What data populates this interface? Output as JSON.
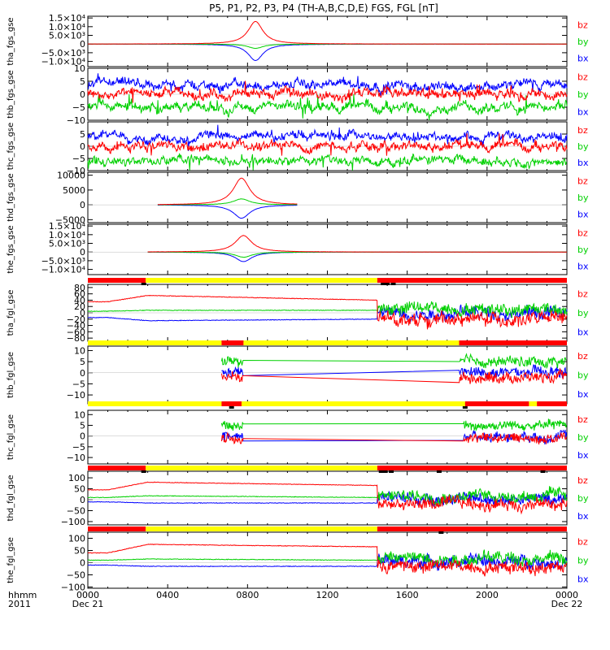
{
  "title": "P5, P1, P2, P3, P4 (TH-A,B,C,D,E) FGS, FGL [nT]",
  "colors": {
    "bx": "#0000ff",
    "by": "#00d000",
    "bz": "#ff0000",
    "bar_red": "#ff0000",
    "bar_yellow": "#ffff00",
    "bar_black": "#000000"
  },
  "legend": [
    "bz",
    "by",
    "bx"
  ],
  "x_axis": {
    "hour_range": [
      0,
      24
    ],
    "ticks": [
      {
        "hour": 0,
        "label": "0000",
        "sublabel": "Dec 21"
      },
      {
        "hour": 4,
        "label": "0400",
        "sublabel": ""
      },
      {
        "hour": 8,
        "label": "0800",
        "sublabel": ""
      },
      {
        "hour": 12,
        "label": "1200",
        "sublabel": ""
      },
      {
        "hour": 16,
        "label": "1600",
        "sublabel": ""
      },
      {
        "hour": 20,
        "label": "2000",
        "sublabel": ""
      },
      {
        "hour": 24,
        "label": "0000",
        "sublabel": "Dec 22"
      }
    ],
    "corner_label_1": "hhmm",
    "corner_label_2": "2011"
  },
  "chart_data": [
    {
      "type": "line",
      "name": "tha_fgs_gse",
      "ylabel": "tha_fgs_gse",
      "ylim": [
        -13000,
        16000
      ],
      "yticks": [
        15000,
        10000,
        5000,
        0,
        -5000,
        -10000
      ],
      "yticklabels": [
        "1.5×10⁴",
        "1.0×10⁴",
        "5.0×10³",
        "0",
        "−5.0×10³",
        "−1.0×10⁴"
      ],
      "data_start": 0,
      "data_end": 24,
      "trend": "spike",
      "spike": {
        "center": 8.4,
        "width": 0.45,
        "bz": 13000,
        "by": -2500,
        "bx": -9500
      }
    },
    {
      "type": "line",
      "name": "thb_fgs_gse",
      "ylabel": "thb_fgs_gse",
      "ylim": [
        -10,
        10
      ],
      "yticks": [
        10,
        5,
        0,
        -5,
        -10
      ],
      "yticklabels": [
        "10",
        "5",
        "0",
        "−5",
        "−10"
      ],
      "data_start": 0,
      "data_end": 24,
      "trend": "noisy",
      "levels": {
        "bx": 3.5,
        "by": -5,
        "bz": 0
      }
    },
    {
      "type": "line",
      "name": "thc_fgs_gse",
      "ylabel": "thc_fgs_gse",
      "ylim": [
        -10,
        10
      ],
      "yticks": [
        5,
        0,
        -5,
        -10
      ],
      "yticklabels": [
        "5",
        "0",
        "−5",
        "−10"
      ],
      "data_start": 0,
      "data_end": 24,
      "trend": "noisy",
      "levels": {
        "bx": 4,
        "by": -6,
        "bz": 0
      }
    },
    {
      "type": "line",
      "name": "thd_fgs_gse",
      "ylabel": "thd_fgs_gse",
      "ylim": [
        -6000,
        11000
      ],
      "yticks": [
        10000,
        5000,
        0,
        -5000
      ],
      "yticklabels": [
        "10000",
        "5000",
        "0",
        "−5000"
      ],
      "data_start": 3.5,
      "data_end": 10.5,
      "trend": "spike",
      "spike": {
        "center": 7.7,
        "width": 0.5,
        "bz": 9000,
        "by": 2000,
        "bx": -4500
      }
    },
    {
      "type": "line",
      "name": "the_fgs_gse",
      "ylabel": "the_fgs_gse",
      "ylim": [
        -13000,
        16000
      ],
      "yticks": [
        15000,
        10000,
        5000,
        0,
        -5000,
        -10000
      ],
      "yticklabels": [
        "1.5×10⁴",
        "1.0×10⁴",
        "5.0×10³",
        "0",
        "−5.0×10³",
        "−1.0×10⁴"
      ],
      "data_start": 3,
      "data_end": 24,
      "trend": "spike",
      "spike": {
        "center": 7.8,
        "width": 0.5,
        "bz": 9500,
        "by": -3000,
        "bx": -5500
      }
    },
    {
      "type": "line",
      "name": "tha_fgl_gse",
      "ylabel": "tha_fgl_gse",
      "ylim": [
        -90,
        90
      ],
      "yticks": [
        80,
        60,
        40,
        20,
        0,
        -20,
        -40,
        -60,
        -80
      ],
      "yticklabels": [
        "80",
        "60",
        "40",
        "20",
        "0",
        "−20",
        "−40",
        "−60",
        "−80"
      ],
      "data_start": 0,
      "data_end": 24,
      "trend": "smooth-then-noisy",
      "switch": 14.5,
      "smooth": {
        "bz": [
          35,
          55,
          40
        ],
        "by": [
          5,
          8,
          8
        ],
        "bx": [
          -15,
          -25,
          -20
        ]
      },
      "levels": {
        "bx": 0,
        "by": 15,
        "bz": -20
      }
    },
    {
      "type": "line",
      "name": "thb_fgl_gse",
      "ylabel": "thb_fgl_gse",
      "ylim": [
        -14,
        12
      ],
      "yticks": [
        10,
        5,
        0,
        -5,
        -10
      ],
      "yticklabels": [
        "10",
        "5",
        "0",
        "−5",
        "−10"
      ],
      "data_start": 6.7,
      "data_end": 24,
      "trend": "gap",
      "gap": [
        7.8,
        18.6
      ],
      "levels": {
        "bx": 0,
        "by": 5,
        "bz": -2
      }
    },
    {
      "type": "line",
      "name": "thc_fgl_gse",
      "ylabel": "thc_fgl_gse",
      "ylim": [
        -13,
        12
      ],
      "yticks": [
        10,
        5,
        0,
        -5,
        -10
      ],
      "yticklabels": [
        "10",
        "5",
        "0",
        "−5",
        "−10"
      ],
      "data_start": 6.7,
      "data_end": 24,
      "trend": "gap",
      "gap": [
        7.8,
        18.8
      ],
      "levels": {
        "bx": 0,
        "by": 5,
        "bz": -1
      }
    },
    {
      "type": "line",
      "name": "thd_fgl_gse",
      "ylabel": "thd_fgl_gse",
      "ylim": [
        -115,
        130
      ],
      "yticks": [
        100,
        50,
        0,
        -50,
        -100
      ],
      "yticklabels": [
        "100",
        "50",
        "0",
        "−50",
        "−100"
      ],
      "data_start": 0,
      "data_end": 24,
      "trend": "smooth-then-noisy",
      "switch": 14.5,
      "smooth": {
        "bz": [
          45,
          80,
          65
        ],
        "by": [
          10,
          18,
          10
        ],
        "bx": [
          -10,
          -15,
          -15
        ]
      },
      "levels": {
        "bx": 5,
        "by": 20,
        "bz": -20
      }
    },
    {
      "type": "line",
      "name": "the_fgl_gse",
      "ylabel": "the_fgl_gse",
      "ylim": [
        -105,
        125
      ],
      "yticks": [
        100,
        50,
        0,
        -50,
        -100
      ],
      "yticklabels": [
        "100",
        "50",
        "0",
        "−50",
        "−100"
      ],
      "data_start": 0,
      "data_end": 24,
      "trend": "smooth-then-noisy",
      "switch": 14.5,
      "smooth": {
        "bz": [
          40,
          75,
          65
        ],
        "by": [
          10,
          15,
          10
        ],
        "bx": [
          -10,
          -15,
          -15
        ]
      },
      "levels": {
        "bx": 5,
        "by": 20,
        "bz": -15
      }
    }
  ],
  "mode_bars": [
    {
      "before_panel": 5,
      "segments": [
        {
          "from": 0,
          "to": 2.9,
          "color": "red"
        },
        {
          "from": 2.9,
          "to": 14.5,
          "color": "yellow"
        },
        {
          "from": 14.5,
          "to": 24,
          "color": "red"
        }
      ],
      "marks": [
        2.8,
        14.8,
        15.0,
        15.3
      ]
    },
    {
      "before_panel": 6,
      "segments": [
        {
          "from": 0,
          "to": 6.7,
          "color": "yellow"
        },
        {
          "from": 6.7,
          "to": 7.8,
          "color": "red"
        },
        {
          "from": 7.8,
          "to": 18.6,
          "color": "yellow"
        },
        {
          "from": 18.6,
          "to": 24,
          "color": "red"
        }
      ],
      "marks": []
    },
    {
      "before_panel": 7,
      "segments": [
        {
          "from": 0,
          "to": 6.7,
          "color": "yellow"
        },
        {
          "from": 6.7,
          "to": 7.7,
          "color": "red"
        },
        {
          "from": 7.7,
          "to": 18.9,
          "color": "yellow"
        },
        {
          "from": 18.9,
          "to": 22.1,
          "color": "red"
        },
        {
          "from": 22.1,
          "to": 22.5,
          "color": "yellow"
        },
        {
          "from": 22.5,
          "to": 24,
          "color": "red"
        }
      ],
      "marks": [
        7.2,
        18.9
      ]
    },
    {
      "before_panel": 8,
      "segments": [
        {
          "from": 0,
          "to": 2.9,
          "color": "red"
        },
        {
          "from": 2.9,
          "to": 14.5,
          "color": "yellow"
        },
        {
          "from": 14.5,
          "to": 24,
          "color": "red"
        }
      ],
      "marks": [
        2.8,
        14.7,
        14.9,
        15.2,
        17.6,
        22.8
      ]
    },
    {
      "before_panel": 9,
      "segments": [
        {
          "from": 0,
          "to": 2.9,
          "color": "red"
        },
        {
          "from": 2.9,
          "to": 14.5,
          "color": "yellow"
        },
        {
          "from": 14.5,
          "to": 24,
          "color": "red"
        }
      ],
      "marks": [
        17.7
      ]
    }
  ]
}
